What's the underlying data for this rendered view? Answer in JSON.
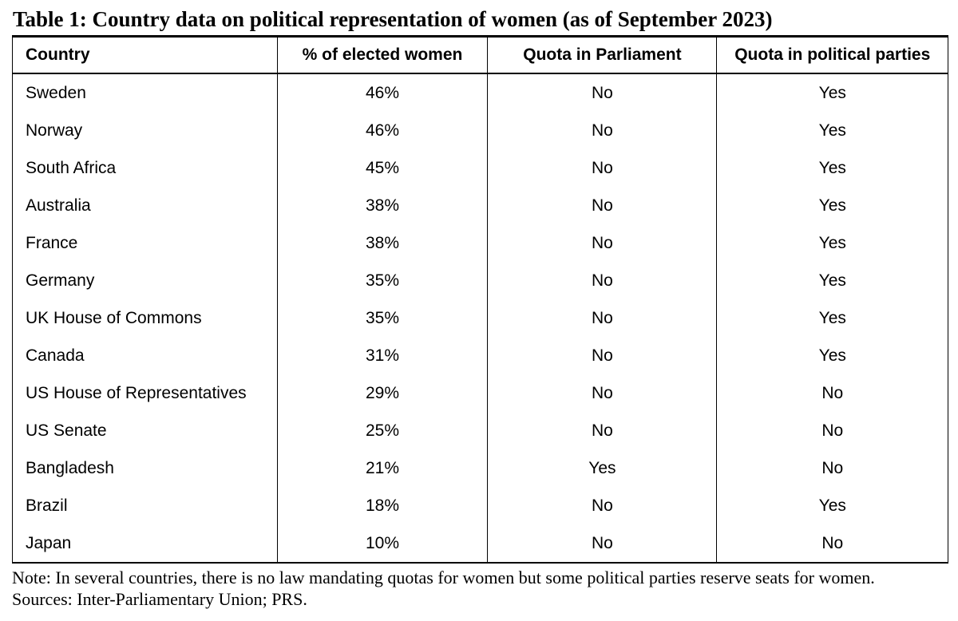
{
  "title": "Table 1: Country data on political representation of women (as of September 2023)",
  "table": {
    "columns": [
      "Country",
      "% of elected women",
      "Quota in Parliament",
      "Quota in political parties"
    ],
    "rows": [
      [
        "Sweden",
        "46%",
        "No",
        "Yes"
      ],
      [
        "Norway",
        "46%",
        "No",
        "Yes"
      ],
      [
        "South Africa",
        "45%",
        "No",
        "Yes"
      ],
      [
        "Australia",
        "38%",
        "No",
        "Yes"
      ],
      [
        "France",
        "38%",
        "No",
        "Yes"
      ],
      [
        "Germany",
        "35%",
        "No",
        "Yes"
      ],
      [
        "UK House of Commons",
        "35%",
        "No",
        "Yes"
      ],
      [
        "Canada",
        "31%",
        "No",
        "Yes"
      ],
      [
        "US House of Representatives",
        "29%",
        "No",
        "No"
      ],
      [
        "US Senate",
        "25%",
        "No",
        "No"
      ],
      [
        "Bangladesh",
        "21%",
        "Yes",
        "No"
      ],
      [
        "Brazil",
        "18%",
        "No",
        "Yes"
      ],
      [
        "Japan",
        "10%",
        "No",
        "No"
      ]
    ]
  },
  "note": "Note: In several countries, there is no law mandating quotas for women but some political parties reserve seats for women.",
  "sources": "Sources: Inter-Parliamentary Union; PRS.",
  "colors": {
    "text": "#000000",
    "background": "#ffffff",
    "border": "#000000"
  }
}
